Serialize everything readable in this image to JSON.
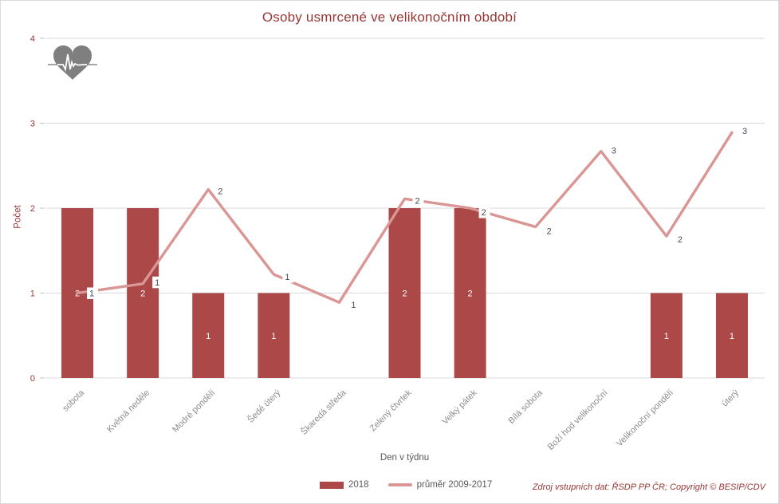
{
  "page": {
    "title": "Osoby usmrcené ve velikonočním období",
    "source_note": "Zdroj vstupních dat: ŘSDP PP ČR; Copyright © BESIP/CDV"
  },
  "icons": {
    "heart": "heartbeat-heart-icon"
  },
  "chart_data": {
    "type": "bar",
    "subtype": "bar+line combo",
    "title": "Osoby usmrcené ve velikonočním období",
    "xlabel": "Den v týdnu",
    "ylabel": "Počet",
    "ylim": [
      0,
      4
    ],
    "yticks": [
      0,
      1,
      2,
      3,
      4
    ],
    "grid": true,
    "legend_position": "bottom-center",
    "categories": [
      "sobota",
      "Květná neděle",
      "Modré pondělí",
      "Šedé úterý",
      "Škaredá středa",
      "Zelený čtvrtek",
      "Velký pátek",
      "Bílá sobota",
      "Boží hod velikonoční",
      "Velikonoční pondělí",
      "úterý"
    ],
    "series": [
      {
        "name": "2018",
        "type": "bar",
        "color": "#AC4848",
        "values": [
          2,
          2,
          1,
          1,
          0,
          2,
          2,
          0,
          0,
          1,
          1
        ],
        "labels": [
          "2",
          "2",
          "1",
          "1",
          "",
          "2",
          "2",
          "",
          "",
          "1",
          "1"
        ]
      },
      {
        "name": "průměr 2009-2017",
        "type": "line",
        "color": "#D99694",
        "values": [
          1.0,
          1.11,
          2.22,
          1.22,
          0.89,
          2.11,
          2.0,
          1.78,
          2.67,
          1.67,
          2.89
        ],
        "labels": [
          "1",
          "1",
          "2",
          "1",
          "1",
          "2",
          "2",
          "2",
          "3",
          "2",
          "3"
        ]
      }
    ],
    "colors": {
      "bar": "#AC4848",
      "line": "#D99694",
      "title": "#963735",
      "y_axis_text": "#963735",
      "x_axis_text": "#8c8c8c",
      "gridline": "#d9d9d9",
      "bar_label": "#ffffff",
      "line_label": "#454857"
    }
  }
}
